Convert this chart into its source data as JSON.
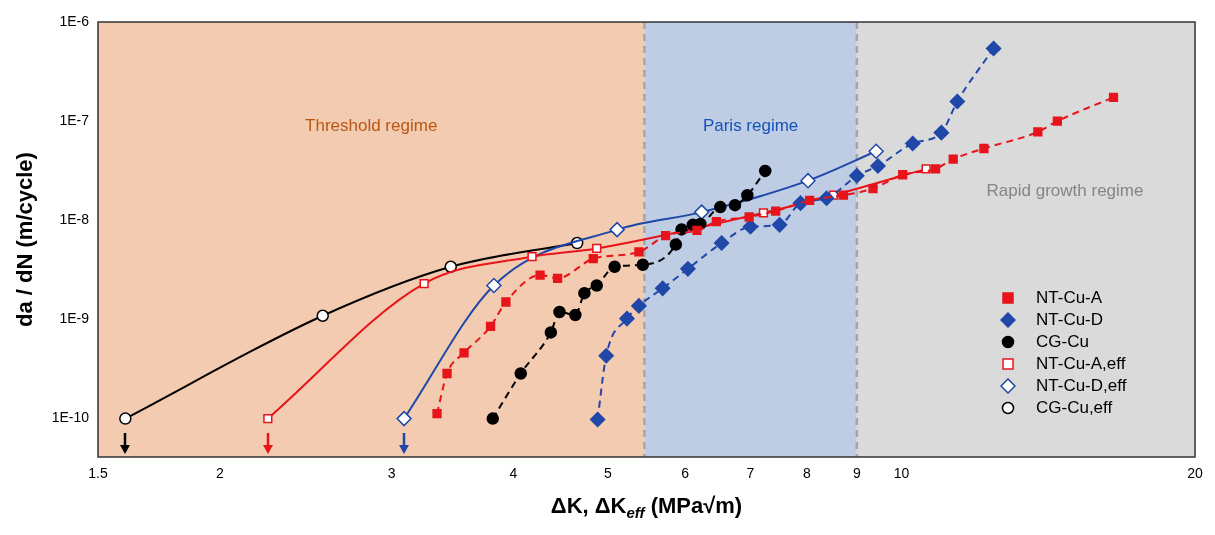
{
  "chart_data": {
    "type": "line",
    "xlabel": "ΔK, ΔK$_{eff}$ (MPa√m)",
    "ylabel": "da / dN (m/cycle)",
    "log": "xy",
    "xlim": [
      1.5,
      20
    ],
    "xticks": [
      1.5,
      2,
      3,
      4,
      5,
      6,
      7,
      8,
      9,
      10,
      20
    ],
    "ylim": [
      4.1e-11,
      1e-06
    ],
    "yticks": [
      {
        "value": 1e-10,
        "label": "1E-10"
      },
      {
        "value": 1e-09,
        "label": "1E-9"
      },
      {
        "value": 1e-08,
        "label": "1E-8"
      },
      {
        "value": 1e-07,
        "label": "1E-7"
      },
      {
        "value": 1e-06,
        "label": "1E-6"
      }
    ],
    "legend": "bottom right",
    "bands": [
      {
        "axis": "x",
        "from": 1.5,
        "to": 5.45,
        "label": "Threshold regime",
        "color": "#f2cbb0"
      },
      {
        "axis": "x",
        "from": 5.45,
        "to": 9,
        "label": "Paris regime",
        "color": "#bfcde4"
      },
      {
        "axis": "x",
        "from": 9,
        "to": 20,
        "label": "Rapid growth regime",
        "color": "#dadada"
      }
    ],
    "ref_lines": [
      {
        "axis": "x",
        "value": 5.45,
        "color": "#a6a6a6",
        "line_style": "dashed"
      },
      {
        "axis": "x",
        "value": 9,
        "color": "#a6a6a6",
        "line_style": "dashed"
      }
    ],
    "series": [
      {
        "name": "NT-Cu-A",
        "color": "#e8141b",
        "marker": "square",
        "line_style": "dashed",
        "x": [
          3.34,
          3.42,
          3.56,
          3.79,
          3.93,
          4.26,
          4.44,
          4.83,
          5.38,
          5.73,
          6.17,
          6.46,
          6.98,
          7.43,
          8.05,
          8.72,
          9.35,
          10.03,
          10.84,
          11.3,
          12.15,
          13.8,
          14.45,
          16.5
        ],
        "values": [
          1.12e-10,
          2.85e-10,
          4.6e-10,
          8.5e-10,
          1.5e-09,
          2.8e-09,
          2.6e-09,
          4.1e-09,
          4.8e-09,
          7e-09,
          7.9e-09,
          9.7e-09,
          1.08e-08,
          1.24e-08,
          1.59e-08,
          1.79e-08,
          2.09e-08,
          2.88e-08,
          3.3e-08,
          4.14e-08,
          5.3e-08,
          7.8e-08,
          1e-07,
          1.74e-07
        ]
      },
      {
        "name": "NT-Cu-D",
        "color": "#1f48a8",
        "marker": "diamond",
        "line_style": "dashed",
        "x": [
          4.88,
          4.98,
          5.23,
          5.38,
          5.69,
          6.04,
          6.54,
          7.0,
          7.5,
          7.88,
          8.38,
          9.0,
          9.46,
          10.27,
          10.99,
          11.41,
          12.43
        ],
        "values": [
          9.8e-11,
          4.3e-10,
          1.02e-09,
          1.37e-09,
          2.06e-09,
          3.24e-09,
          5.9e-09,
          8.6e-09,
          9e-09,
          1.49e-08,
          1.67e-08,
          2.81e-08,
          3.53e-08,
          5.96e-08,
          7.66e-08,
          1.58e-07,
          5.41e-07
        ]
      },
      {
        "name": "CG-Cu",
        "color": "#000000",
        "marker": "circle",
        "line_style": "dashed",
        "x": [
          3.81,
          4.07,
          4.37,
          4.46,
          4.63,
          4.73,
          4.87,
          5.08,
          5.43,
          5.87,
          5.95,
          6.11,
          6.22,
          6.52,
          6.75,
          6.95,
          7.25
        ],
        "values": [
          1e-10,
          2.85e-10,
          7.4e-10,
          1.19e-09,
          1.11e-09,
          1.84e-09,
          2.2e-09,
          3.4e-09,
          3.56e-09,
          5.7e-09,
          8.1e-09,
          9e-09,
          9.2e-09,
          1.36e-08,
          1.42e-08,
          1.79e-08,
          3.15e-08
        ]
      },
      {
        "name": "NT-Cu-A,eff",
        "color": "#e8141b",
        "marker": "square",
        "line_style": "solid",
        "x": [
          2.24,
          3.24,
          4.18,
          4.87,
          7.22,
          8.52,
          10.6
        ],
        "values": [
          1e-10,
          2.3e-09,
          4.3e-09,
          5.2e-09,
          1.19e-08,
          1.79e-08,
          3.3e-08
        ]
      },
      {
        "name": "NT-Cu-D,eff",
        "color": "#1f48a8",
        "marker": "diamond",
        "line_style": "solid",
        "x": [
          3.09,
          3.82,
          5.11,
          6.24,
          8.02,
          9.42
        ],
        "values": [
          1e-10,
          2.2e-09,
          8.05e-09,
          1.21e-08,
          2.51e-08,
          4.97e-08
        ]
      },
      {
        "name": "CG-Cu,eff",
        "color": "#000000",
        "marker": "circle",
        "line_style": "solid",
        "x": [
          1.6,
          2.55,
          3.45,
          4.65
        ],
        "values": [
          1e-10,
          1.09e-09,
          3.4e-09,
          5.9e-09
        ]
      }
    ]
  }
}
